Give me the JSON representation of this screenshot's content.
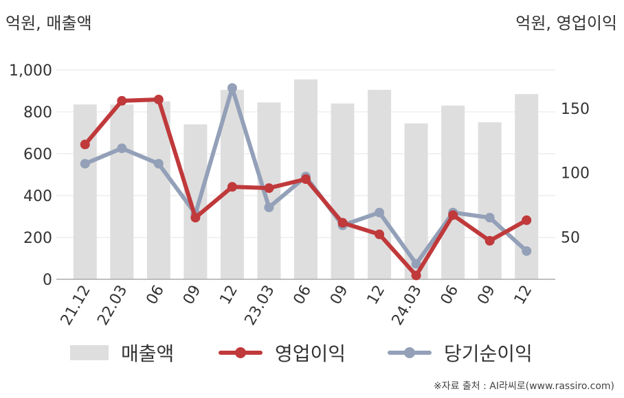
{
  "units": {
    "left": "억원, 매출액",
    "right": "억원, 영업이익"
  },
  "source": "※자료 출처 : AI라씨로(www.rassiro.com)",
  "colors": {
    "bar": "#dedede",
    "operating_profit": "#c0393b",
    "net_income": "#93a0b8",
    "grid": "#e6e6e6",
    "axis": "#aaaaaa"
  },
  "chart_data": {
    "type": "bar+line",
    "categories": [
      "21.12",
      "22.03",
      "06",
      "09",
      "12",
      "23.03",
      "06",
      "09",
      "12",
      "24.03",
      "06",
      "09",
      "12"
    ],
    "y_left": {
      "range": [
        0,
        1000
      ],
      "ticks": [
        0,
        200,
        400,
        600,
        800,
        1000
      ],
      "tick_labels": [
        "0",
        "200",
        "400",
        "600",
        "800",
        "1,000"
      ]
    },
    "y_right": {
      "range": [
        17,
        180
      ],
      "ticks": [
        50,
        100,
        150
      ],
      "tick_labels": [
        "50",
        "100",
        "150"
      ]
    },
    "series": [
      {
        "name": "매출액",
        "type": "bar",
        "axis": "left",
        "values": [
          835,
          835,
          850,
          740,
          905,
          845,
          955,
          840,
          905,
          745,
          830,
          750,
          885
        ]
      },
      {
        "name": "영업이익",
        "type": "line",
        "axis": "right",
        "values": [
          122,
          156,
          157,
          65,
          89,
          88,
          95,
          61,
          52,
          20,
          67,
          47,
          63
        ]
      },
      {
        "name": "당기순이익",
        "type": "line",
        "axis": "right",
        "values": [
          107,
          119,
          107,
          68,
          166,
          73,
          97,
          59,
          69,
          29,
          69,
          65,
          39
        ]
      }
    ],
    "grid": true,
    "legend": "bottom"
  }
}
